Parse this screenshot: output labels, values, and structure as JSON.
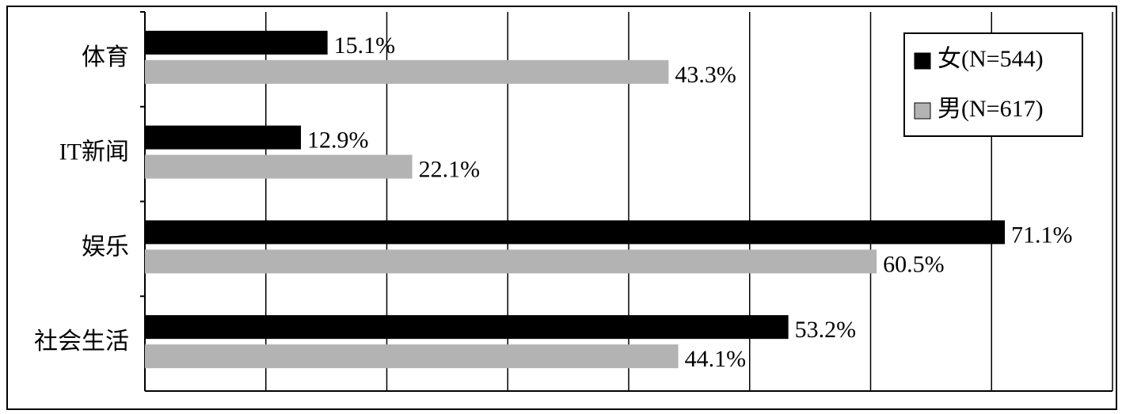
{
  "chart_data": {
    "type": "hbar",
    "categories": [
      "体育",
      "IT新闻",
      "娱乐",
      "社会生活"
    ],
    "series": [
      {
        "name": "女(N=544)",
        "color": "#000000",
        "values": [
          15.1,
          12.9,
          71.1,
          53.2
        ],
        "value_labels": [
          "15.1%",
          "12.9%",
          "71.1%",
          "53.2%"
        ]
      },
      {
        "name": "男(N=617)",
        "color": "#b3b3b3",
        "values": [
          43.3,
          22.1,
          60.5,
          44.1
        ],
        "value_labels": [
          "43.3%",
          "22.1%",
          "60.5%",
          "44.1%"
        ]
      }
    ],
    "xlim": [
      0,
      80
    ],
    "xticks": [
      0,
      10,
      20,
      30,
      40,
      50,
      60,
      70,
      80
    ],
    "grid": true,
    "legend": "upper right"
  }
}
